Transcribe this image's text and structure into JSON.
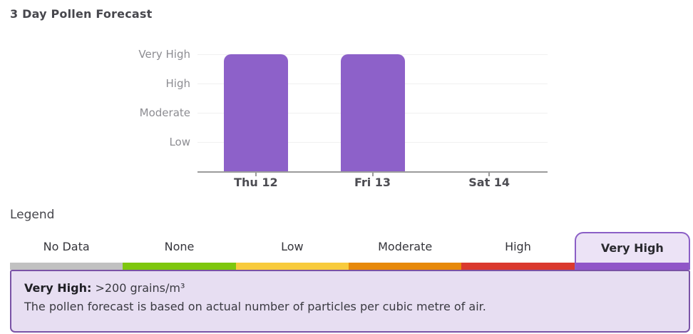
{
  "header": {
    "title": "3 Day Pollen Forecast"
  },
  "chart_data": {
    "type": "bar",
    "title": "3 Day Pollen Forecast",
    "categories": [
      "Thu 12",
      "Fri 13",
      "Sat 14"
    ],
    "values": [
      4,
      4,
      null
    ],
    "value_labels": [
      "Very High",
      "Very High",
      "No Data"
    ],
    "y_ticks_top_to_bottom": [
      "Very High",
      "High",
      "Moderate",
      "Low"
    ],
    "y_scale": {
      "Low": 1,
      "Moderate": 2,
      "High": 3,
      "Very High": 4
    },
    "ylim": [
      0,
      4
    ],
    "bar_color": "#8d61c9",
    "grid": true,
    "legend_position": "below"
  },
  "legend": {
    "heading": "Legend",
    "selected": "Very High",
    "items": [
      {
        "label": "No Data",
        "color": "#c1c1c1",
        "selected": false
      },
      {
        "label": "None",
        "color": "#7ec70e",
        "selected": false
      },
      {
        "label": "Low",
        "color": "#f8cb3d",
        "selected": false
      },
      {
        "label": "Moderate",
        "color": "#e7890b",
        "selected": false
      },
      {
        "label": "High",
        "color": "#da392e",
        "selected": false
      },
      {
        "label": "Very High",
        "color": "#9055c8",
        "selected": true
      }
    ]
  },
  "detail": {
    "label": "Very High:",
    "value": ">200 grains/m³",
    "description": "The pollen forecast is based on actual number of particles per cubic metre of air."
  },
  "colors": {
    "bar": "#8d61c9",
    "axis": "#9b9b9b",
    "gridline": "#f0f0f0",
    "selected_tab_border": "#8b5fc6",
    "selected_tab_bg": "#ece3f6",
    "detail_bg": "#e7def2",
    "detail_border": "#7a53a6"
  }
}
